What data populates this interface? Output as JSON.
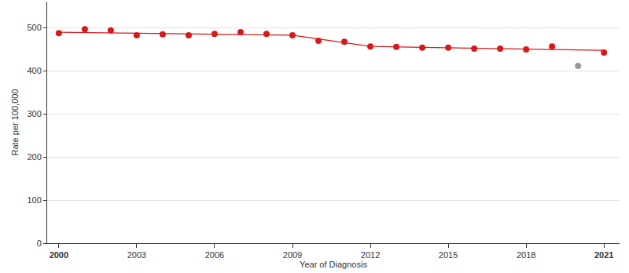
{
  "chart_data": {
    "type": "scatter",
    "x_label": "Year of Diagnosis",
    "y_label": "Rate per 100,000",
    "xlim": [
      1999.55,
      2021.6
    ],
    "ylim": [
      0,
      560
    ],
    "xticks": [
      2000,
      2003,
      2006,
      2009,
      2012,
      2015,
      2018,
      2021
    ],
    "yticks": [
      0,
      100,
      200,
      300,
      400,
      500
    ],
    "grid": true,
    "series": [
      {
        "type": "scatter",
        "marker": "circle",
        "x": [
          2000,
          2001,
          2002,
          2003,
          2004,
          2005,
          2006,
          2007,
          2008,
          2009,
          2010,
          2011,
          2012,
          2013,
          2014,
          2015,
          2016,
          2017,
          2018,
          2019,
          2020,
          2021
        ],
        "values": [
          487,
          496,
          493,
          482,
          484,
          482,
          485,
          489,
          485,
          482,
          469,
          467,
          456,
          455,
          453,
          453,
          451,
          451,
          449,
          456,
          411,
          442
        ],
        "colors": [
          "#d7191c",
          "#d7191c",
          "#d7191c",
          "#d7191c",
          "#d7191c",
          "#d7191c",
          "#d7191c",
          "#d7191c",
          "#d7191c",
          "#d7191c",
          "#d7191c",
          "#d7191c",
          "#d7191c",
          "#d7191c",
          "#d7191c",
          "#d7191c",
          "#d7191c",
          "#d7191c",
          "#d7191c",
          "#d7191c",
          "#999999",
          "#d7191c"
        ]
      },
      {
        "type": "line",
        "line_style": "solid",
        "x": [
          2000,
          2009,
          2012,
          2021
        ],
        "values": [
          489,
          482,
          456,
          447
        ],
        "color": "#d7191c"
      }
    ]
  }
}
